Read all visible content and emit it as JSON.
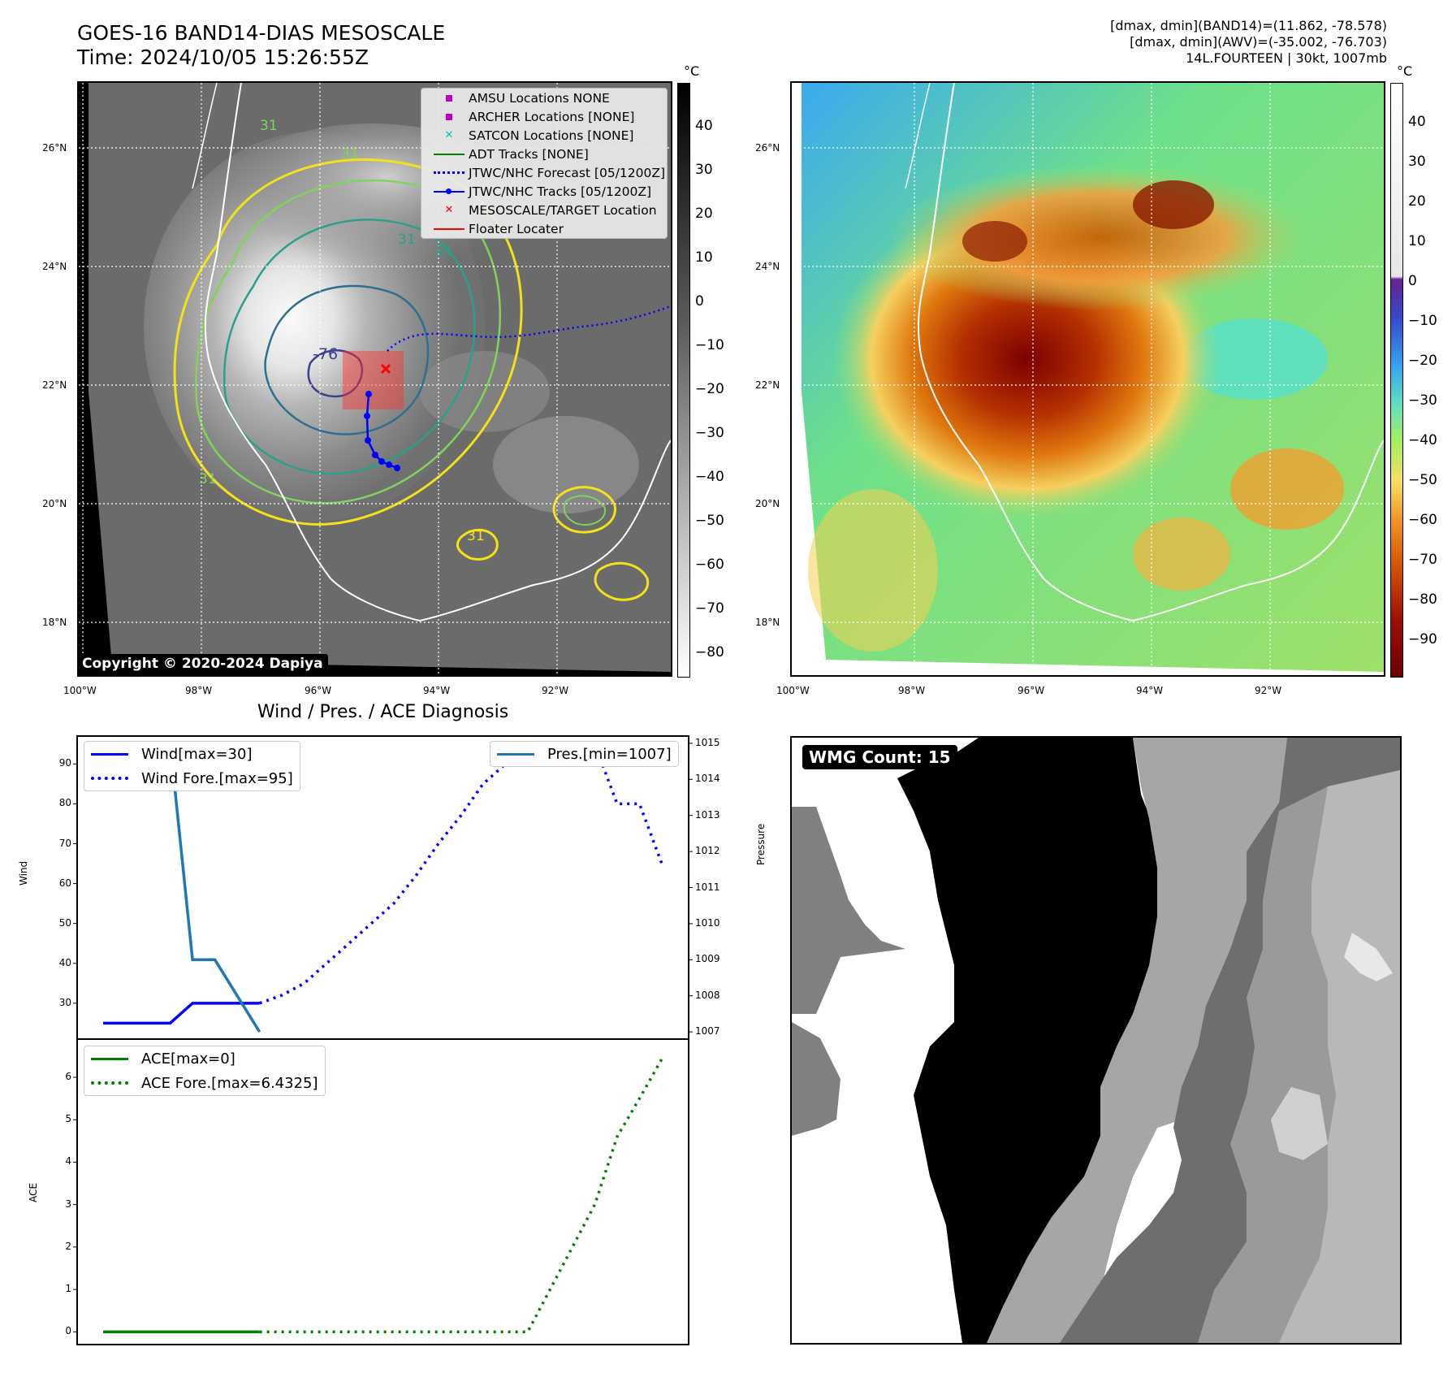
{
  "header": {
    "title_line1": "GOES-16 BAND14-DIAS MESOSCALE",
    "title_line2": "Time: 2024/10/05 15:26:55Z",
    "info_line1": "[dmax, dmin](BAND14)=(11.862, -78.578)",
    "info_line2": "[dmax, dmin](AWV)=(-35.002, -76.703)",
    "info_line3": "14L.FOURTEEN | 30kt, 1007mb"
  },
  "map": {
    "lat_labels": [
      "26°N",
      "24°N",
      "22°N",
      "20°N",
      "18°N"
    ],
    "lon_labels": [
      "100°W",
      "98°W",
      "96°W",
      "94°W",
      "92°W"
    ],
    "contour_labels": [
      "31",
      "31",
      "31",
      "31",
      "34",
      "-76",
      "31"
    ],
    "unit": "°C",
    "copyright": "Copyright © 2020-2024 Dapiya",
    "legend": [
      {
        "label": "AMSU Locations NONE",
        "symbol": "square",
        "color": "#c000c0"
      },
      {
        "label": "ARCHER Locations [NONE]",
        "symbol": "square",
        "color": "#c000c0"
      },
      {
        "label": "SATCON Locations [NONE]",
        "symbol": "x",
        "color": "#00bfbf"
      },
      {
        "label": "ADT Tracks [NONE]",
        "symbol": "line",
        "color": "#008000"
      },
      {
        "label": "JTWC/NHC Forecast [05/1200Z]",
        "symbol": "dotted",
        "color": "#0000ff"
      },
      {
        "label": "JTWC/NHC Tracks [05/1200Z]",
        "symbol": "line-dot",
        "color": "#0000ff"
      },
      {
        "label": "MESOSCALE/TARGET Location",
        "symbol": "x",
        "color": "#ff0000"
      },
      {
        "label": "Floater Locater",
        "symbol": "line",
        "color": "#ff0000"
      }
    ],
    "gray_colorbar_ticks": [
      "40",
      "30",
      "20",
      "10",
      "0",
      "−10",
      "−20",
      "−30",
      "−40",
      "−50",
      "−60",
      "−70",
      "−80"
    ],
    "color_colorbar_ticks": [
      "40",
      "30",
      "20",
      "10",
      "0",
      "−10",
      "−20",
      "−30",
      "−40",
      "−50",
      "−60",
      "−70",
      "−80",
      "−90"
    ]
  },
  "chart_data": [
    {
      "type": "line",
      "title": "Wind / Pres. / ACE Diagnosis",
      "ylabel": "Wind",
      "ylabel_right": "Pressure",
      "wind_ticks": [
        "90",
        "80",
        "70",
        "60",
        "50",
        "40",
        "30"
      ],
      "pressure_ticks": [
        "1015",
        "1014",
        "1013",
        "1012",
        "1011",
        "1010",
        "1009",
        "1008",
        "1007"
      ],
      "x": [
        0,
        1,
        2,
        3,
        4,
        5,
        6,
        7,
        8,
        9,
        10,
        11,
        12,
        13,
        14,
        15,
        16,
        17,
        18,
        19,
        20,
        21,
        22,
        23,
        24,
        25
      ],
      "legend_left": [
        "Wind[max=30]",
        "Wind Fore.[max=95]"
      ],
      "legend_right": [
        "Pres.[min=1007]"
      ],
      "series": [
        {
          "name": "Wind[max=30]",
          "style": "solid",
          "color": "#0000ff",
          "x": [
            0,
            1,
            2,
            3,
            4,
            5,
            6,
            7
          ],
          "values": [
            25,
            25,
            25,
            25,
            30,
            30,
            30,
            30
          ]
        },
        {
          "name": "Wind Fore.[max=95]",
          "style": "dotted",
          "color": "#0000ff",
          "x": [
            7,
            8,
            9,
            10,
            11,
            12,
            13,
            14,
            15,
            16,
            17,
            18,
            19,
            20,
            21,
            22,
            23,
            24,
            25
          ],
          "values": [
            30,
            32,
            35,
            40,
            45,
            50,
            55,
            62,
            70,
            77,
            85,
            90,
            95,
            95,
            95,
            95,
            80,
            80,
            65
          ]
        },
        {
          "name": "Pres.[min=1007]",
          "style": "solid",
          "color": "#1f77b4",
          "axis": "right",
          "x": [
            1,
            2,
            3,
            4,
            5,
            6,
            7
          ],
          "values": [
            1015,
            1015,
            1015,
            1009,
            1009,
            1008,
            1007
          ]
        }
      ],
      "wind_ylim": [
        21,
        97
      ],
      "pressure_ylim": [
        1006.8,
        1015.2
      ]
    },
    {
      "type": "line",
      "ylabel": "ACE",
      "ace_ticks": [
        "6",
        "5",
        "4",
        "3",
        "2",
        "1",
        "0"
      ],
      "legend": [
        "ACE[max=0]",
        "ACE Fore.[max=6.4325]"
      ],
      "series": [
        {
          "name": "ACE[max=0]",
          "style": "solid",
          "color": "#008000",
          "x": [
            0,
            1,
            2,
            3,
            4,
            5,
            6,
            7
          ],
          "values": [
            0,
            0,
            0,
            0,
            0,
            0,
            0,
            0
          ]
        },
        {
          "name": "ACE Fore.[max=6.4325]",
          "style": "dotted",
          "color": "#008000",
          "x": [
            7,
            8,
            9,
            10,
            11,
            12,
            13,
            14,
            15,
            16,
            17,
            18,
            19,
            20,
            21,
            22,
            23,
            24,
            25
          ],
          "values": [
            0,
            0,
            0,
            0,
            0,
            0,
            0,
            0,
            0,
            0,
            0,
            0,
            0,
            1,
            2,
            3,
            4.6,
            5.5,
            6.4325
          ]
        }
      ],
      "ylim": [
        -0.3,
        6.9
      ]
    }
  ],
  "wmg": {
    "label": "WMG Count: 15"
  }
}
